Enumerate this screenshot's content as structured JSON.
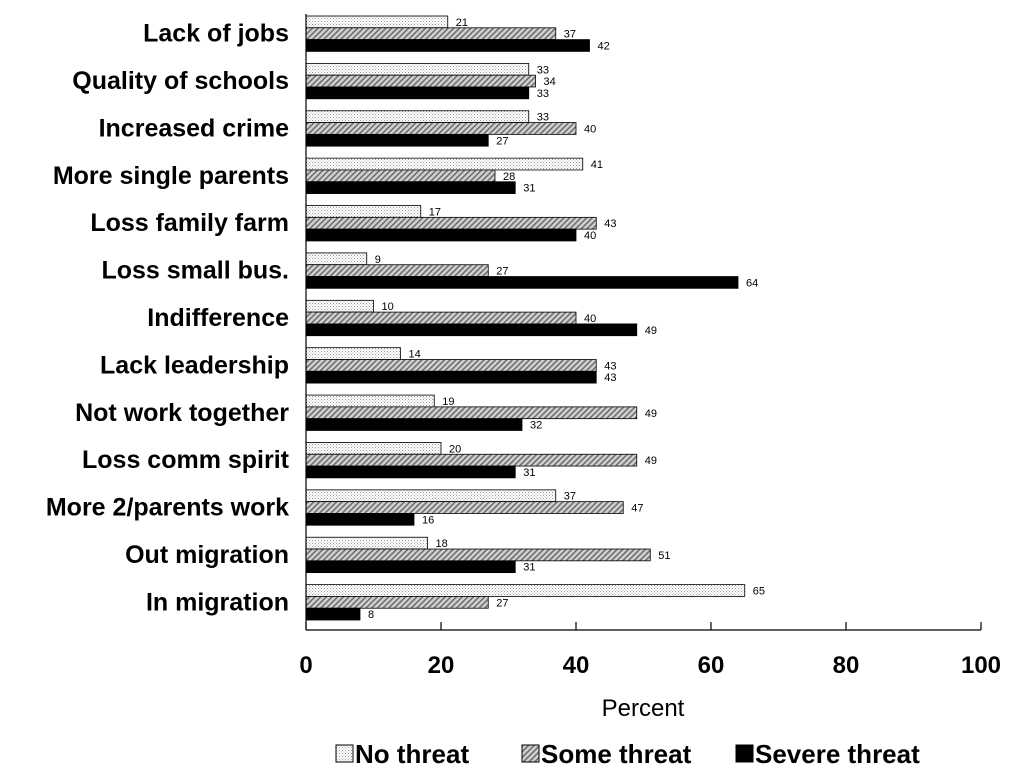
{
  "chart_data": {
    "type": "bar",
    "orientation": "horizontal",
    "categories": [
      "Lack of jobs",
      "Quality of schools",
      "Increased crime",
      "More single parents",
      "Loss family farm",
      "Loss small bus.",
      "Indifference",
      "Lack leadership",
      "Not work together",
      "Loss comm spirit",
      "More 2/parents work",
      "Out migration",
      "In migration"
    ],
    "series": [
      {
        "name": "No threat",
        "fill": "dotted-light",
        "values": [
          21,
          33,
          33,
          41,
          17,
          9,
          10,
          14,
          19,
          20,
          37,
          18,
          65
        ]
      },
      {
        "name": "Some threat",
        "fill": "hatched-gray",
        "values": [
          37,
          34,
          40,
          28,
          43,
          27,
          40,
          43,
          49,
          49,
          47,
          51,
          27
        ]
      },
      {
        "name": "Severe threat",
        "fill": "solid-black",
        "values": [
          42,
          33,
          27,
          31,
          40,
          64,
          49,
          43,
          32,
          31,
          16,
          31,
          8
        ]
      }
    ],
    "xlabel": "Percent",
    "xlim": [
      0,
      100
    ],
    "xticks": [
      0,
      20,
      40,
      60,
      80,
      100
    ],
    "grid": false,
    "data_labels": true,
    "legend_position": "bottom"
  }
}
